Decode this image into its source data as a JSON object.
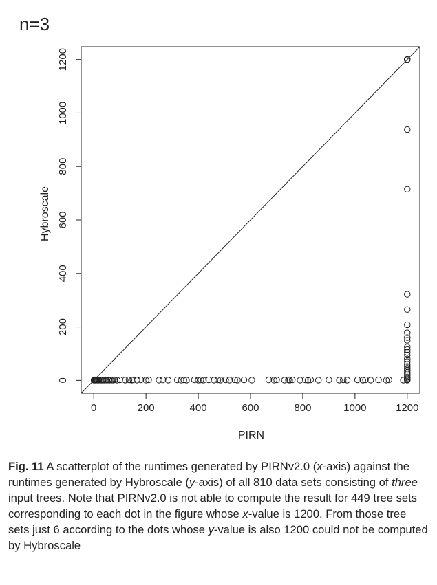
{
  "panel_label": "n=3",
  "caption": {
    "label": "Fig. 11",
    "p1": " A scatterplot of the runtimes generated by PIRNv2.0 (",
    "x_word": "x",
    "p2": "-axis) against the runtimes generated by Hybroscale (",
    "y_word": "y",
    "p3": "-axis) of all 810 data sets consisting of ",
    "three_word": "three",
    "p4": " input trees. Note that PIRNv2.0 is not able to compute the result for 449 tree sets corresponding to each dot in the figure whose ",
    "x_word2": "x",
    "p5": "-value is 1200. From those tree sets just 6 according to the dots whose ",
    "y_word2": "y",
    "p6": "-value is also 1200 could not be computed by Hybroscale"
  },
  "chart_data": {
    "type": "scatter",
    "xlabel": "PIRN",
    "ylabel": "Hybroscale",
    "xlim": [
      -48,
      1248
    ],
    "ylim": [
      -48,
      1248
    ],
    "xticks": [
      0,
      200,
      400,
      600,
      800,
      1000,
      1200
    ],
    "yticks": [
      0,
      200,
      400,
      600,
      800,
      1000,
      1200
    ],
    "reference_line": "y = x",
    "grid": false,
    "series": [
      {
        "points": [
          [
            1,
            1
          ],
          [
            2,
            1
          ],
          [
            3,
            2
          ],
          [
            4,
            1
          ],
          [
            5,
            2
          ],
          [
            6,
            1
          ],
          [
            8,
            2
          ],
          [
            10,
            1
          ],
          [
            12,
            2
          ],
          [
            15,
            1
          ],
          [
            18,
            2
          ],
          [
            20,
            1
          ],
          [
            25,
            2
          ],
          [
            28,
            1
          ],
          [
            32,
            1
          ],
          [
            35,
            2
          ],
          [
            40,
            1
          ],
          [
            45,
            2
          ],
          [
            50,
            1
          ],
          [
            55,
            2
          ],
          [
            60,
            1
          ],
          [
            65,
            2
          ],
          [
            72,
            1
          ],
          [
            80,
            2
          ],
          [
            90,
            1
          ],
          [
            100,
            2
          ],
          [
            120,
            1
          ],
          [
            135,
            2
          ],
          [
            145,
            1
          ],
          [
            150,
            2
          ],
          [
            165,
            1
          ],
          [
            180,
            2
          ],
          [
            200,
            1
          ],
          [
            210,
            2
          ],
          [
            250,
            1
          ],
          [
            265,
            2
          ],
          [
            285,
            1
          ],
          [
            320,
            2
          ],
          [
            335,
            1
          ],
          [
            345,
            2
          ],
          [
            355,
            1
          ],
          [
            385,
            2
          ],
          [
            400,
            1
          ],
          [
            410,
            2
          ],
          [
            420,
            1
          ],
          [
            440,
            2
          ],
          [
            460,
            1
          ],
          [
            475,
            2
          ],
          [
            485,
            1
          ],
          [
            505,
            2
          ],
          [
            520,
            1
          ],
          [
            540,
            2
          ],
          [
            550,
            1
          ],
          [
            575,
            2
          ],
          [
            605,
            1
          ],
          [
            670,
            2
          ],
          [
            690,
            1
          ],
          [
            700,
            2
          ],
          [
            730,
            1
          ],
          [
            745,
            2
          ],
          [
            750,
            1
          ],
          [
            760,
            2
          ],
          [
            790,
            1
          ],
          [
            810,
            2
          ],
          [
            820,
            1
          ],
          [
            830,
            2
          ],
          [
            860,
            1
          ],
          [
            900,
            2
          ],
          [
            940,
            1
          ],
          [
            955,
            2
          ],
          [
            970,
            1
          ],
          [
            1010,
            2
          ],
          [
            1030,
            1
          ],
          [
            1040,
            2
          ],
          [
            1060,
            1
          ],
          [
            1090,
            2
          ],
          [
            1120,
            1
          ],
          [
            1130,
            2
          ],
          [
            1185,
            1
          ],
          [
            1200,
            1200
          ],
          [
            1200,
            1200
          ],
          [
            1200,
            1200
          ],
          [
            1200,
            1200
          ],
          [
            1200,
            1200
          ],
          [
            1200,
            1200
          ],
          [
            1200,
            938
          ],
          [
            1200,
            715
          ],
          [
            1200,
            322
          ],
          [
            1200,
            265
          ],
          [
            1200,
            208
          ],
          [
            1200,
            178
          ],
          [
            1200,
            160
          ],
          [
            1200,
            150
          ],
          [
            1200,
            125
          ],
          [
            1200,
            115
          ],
          [
            1200,
            105
          ],
          [
            1200,
            95
          ],
          [
            1200,
            80
          ],
          [
            1200,
            70
          ],
          [
            1200,
            60
          ],
          [
            1200,
            52
          ],
          [
            1200,
            45
          ],
          [
            1200,
            38
          ],
          [
            1200,
            30
          ],
          [
            1200,
            24
          ],
          [
            1200,
            18
          ],
          [
            1200,
            12
          ],
          [
            1200,
            8
          ],
          [
            1200,
            4
          ],
          [
            1200,
            2
          ],
          [
            1200,
            1
          ]
        ]
      }
    ]
  }
}
